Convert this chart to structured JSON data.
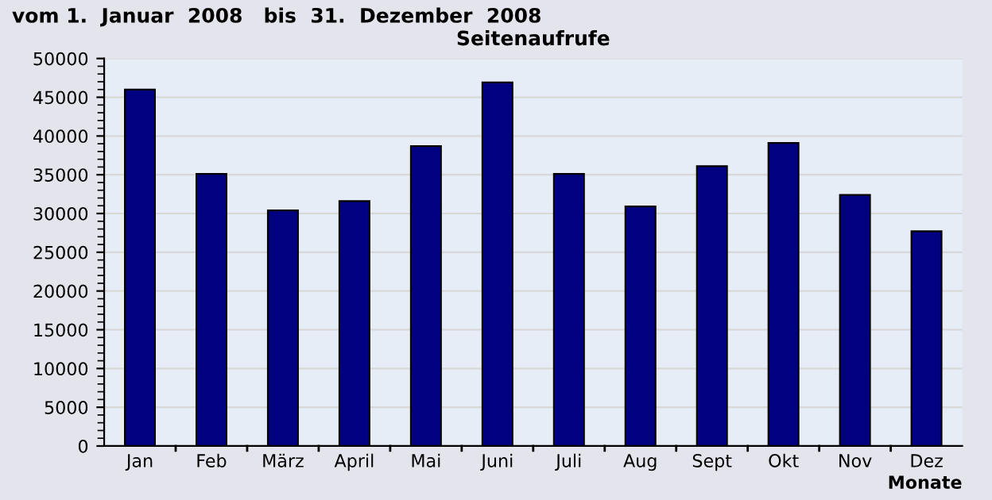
{
  "chart_data": {
    "type": "bar",
    "title": "Seitenaufrufe",
    "xlabel": "Monate",
    "annotations": [
      "vom 1.  Januar  2008   bis  31.  Dezember  2008"
    ],
    "categories": [
      "Jan",
      "Feb",
      "März",
      "April",
      "Mai",
      "Juni",
      "Juli",
      "Aug",
      "Sept",
      "Okt",
      "Nov",
      "Dez"
    ],
    "values": [
      46000,
      35100,
      30400,
      31600,
      38700,
      46900,
      35100,
      30900,
      36100,
      39100,
      32400,
      27700
    ],
    "color": "#000080",
    "ylim": [
      0,
      50000
    ],
    "yticks": [
      0,
      5000,
      10000,
      15000,
      20000,
      25000,
      30000,
      35000,
      40000,
      45000,
      50000
    ],
    "grid": "y",
    "legend": false
  }
}
